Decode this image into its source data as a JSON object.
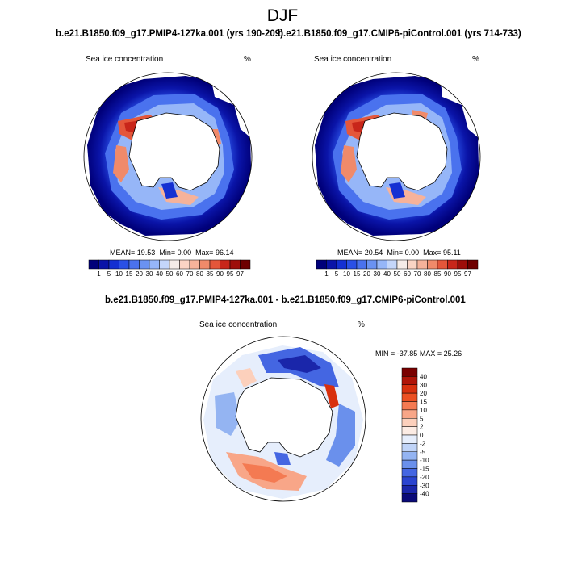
{
  "figure": {
    "title": "DJF"
  },
  "chart_data": [
    {
      "type": "heatmap",
      "title": "b.e21.B1850.f09_g17.PMIP4-127ka.001 (yrs 190-209)",
      "variable": "Sea ice concentration",
      "units": "%",
      "stats": {
        "mean_label": "MEAN=",
        "mean": "19.53",
        "min_label": "Min=",
        "min": "0.00",
        "max_label": "Max=",
        "max": "96.14"
      },
      "colorbar_levels": [
        "1",
        "5",
        "10",
        "15",
        "20",
        "30",
        "40",
        "50",
        "60",
        "70",
        "80",
        "85",
        "90",
        "95",
        "97"
      ],
      "colorbar_colors": [
        "#00007a",
        "#0a14a8",
        "#1430d2",
        "#2a50e6",
        "#4a72ee",
        "#6a92f2",
        "#96b6f8",
        "#c4d6fa",
        "#f5ece8",
        "#fad4c4",
        "#f6b29a",
        "#f08a6a",
        "#e4563a",
        "#c8261a",
        "#9e0e0a",
        "#6e0000"
      ]
    },
    {
      "type": "heatmap",
      "title": "b.e21.B1850.f09_g17.CMIP6-piControl.001 (yrs 714-733)",
      "variable": "Sea ice concentration",
      "units": "%",
      "stats": {
        "mean_label": "MEAN=",
        "mean": "20.54",
        "min_label": "Min=",
        "min": "0.00",
        "max_label": "Max=",
        "max": "95.11"
      },
      "colorbar_levels": [
        "1",
        "5",
        "10",
        "15",
        "20",
        "30",
        "40",
        "50",
        "60",
        "70",
        "80",
        "85",
        "90",
        "95",
        "97"
      ],
      "colorbar_colors": [
        "#00007a",
        "#0a14a8",
        "#1430d2",
        "#2a50e6",
        "#4a72ee",
        "#6a92f2",
        "#96b6f8",
        "#c4d6fa",
        "#f5ece8",
        "#fad4c4",
        "#f6b29a",
        "#f08a6a",
        "#e4563a",
        "#c8261a",
        "#9e0e0a",
        "#6e0000"
      ]
    },
    {
      "type": "heatmap",
      "title": "b.e21.B1850.f09_g17.PMIP4-127ka.001 - b.e21.B1850.f09_g17.CMIP6-piControl.001",
      "variable": "Sea ice concentration",
      "units": "%",
      "stats": {
        "min_label": "MIN =",
        "min": "-37.85",
        "max_label": "MAX =",
        "max": "25.26"
      },
      "colorbar_levels": [
        "40",
        "30",
        "20",
        "15",
        "10",
        "5",
        "2",
        "0",
        "-2",
        "-5",
        "-10",
        "-15",
        "-20",
        "-30",
        "-40"
      ],
      "colorbar_colors": [
        "#7a0000",
        "#b01408",
        "#d8300e",
        "#ec5022",
        "#f47a52",
        "#f8a688",
        "#fcd0bc",
        "#fcecE4",
        "#e6eefc",
        "#c0d4f8",
        "#94b4f2",
        "#6a90ec",
        "#4466e2",
        "#2a44d0",
        "#1a26aa",
        "#0a0a78"
      ]
    }
  ]
}
